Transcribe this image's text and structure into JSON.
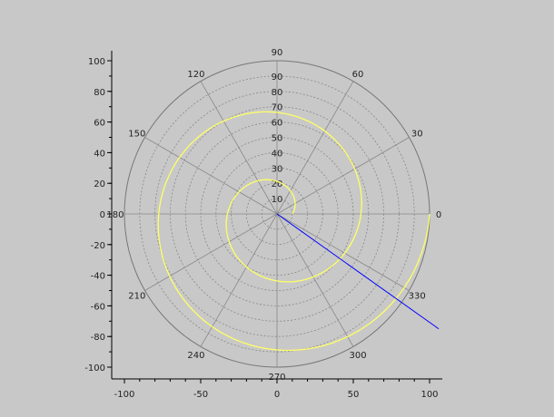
{
  "chart_data": {
    "type": "line",
    "subtype": "polar",
    "title": "",
    "xlabel": "",
    "ylabel": "",
    "xlim": [
      -100,
      100
    ],
    "ylim": [
      -100,
      100
    ],
    "x_ticks": [
      "-100",
      "-50",
      "0",
      "50",
      "100"
    ],
    "y_ticks": [
      "100",
      "80",
      "60",
      "40",
      "20",
      "0",
      "-20",
      "-40",
      "-60",
      "-80",
      "-100"
    ],
    "radial_ticks": [
      "10",
      "20",
      "30",
      "40",
      "50",
      "60",
      "70",
      "80",
      "90"
    ],
    "angle_ticks": [
      "0",
      "30",
      "60",
      "90",
      "120",
      "150",
      "180",
      "210",
      "240",
      "270",
      "300",
      "330"
    ],
    "grid": true,
    "colors": {
      "background": "#c8c8c8",
      "spiral": "#ffff66",
      "line": "#0000ff",
      "grid": "#888888"
    },
    "series": [
      {
        "kind": "spiral",
        "r_start": 10,
        "r_end": 100,
        "theta_start_deg": 0,
        "theta_end_deg": 720
      },
      {
        "kind": "line",
        "x": [
          0,
          106
        ],
        "y": [
          0,
          -75
        ]
      }
    ]
  }
}
